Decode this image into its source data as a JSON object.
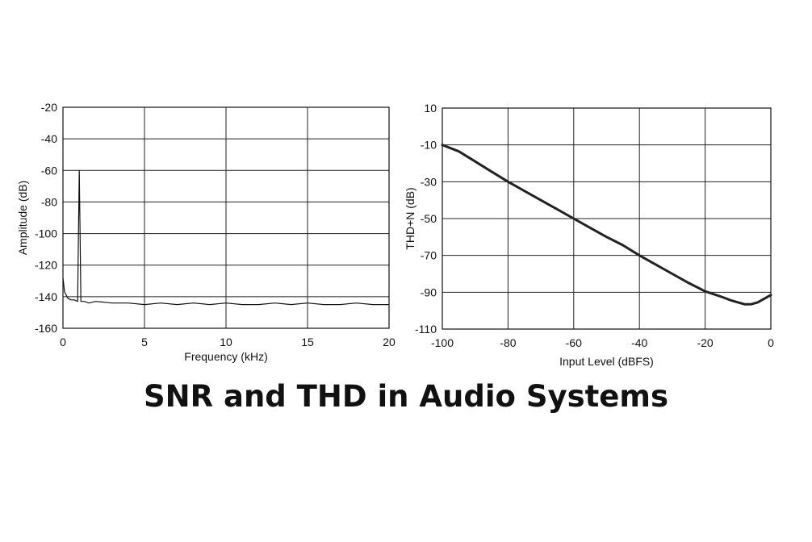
{
  "page": {
    "title": "SNR and THD in Audio Systems"
  },
  "chart_data": [
    {
      "type": "line",
      "xlabel": "Frequency (kHz)",
      "ylabel": "Amplitude (dB)",
      "xlim": [
        0,
        20
      ],
      "ylim": [
        -160,
        -20
      ],
      "x_ticks": [
        0,
        5,
        10,
        15,
        20
      ],
      "y_ticks": [
        -20,
        -40,
        -60,
        -80,
        -100,
        -120,
        -140,
        -160
      ],
      "grid": true,
      "series": [
        {
          "color": "#111111",
          "x": [
            0,
            0.1,
            0.2,
            0.3,
            0.5,
            0.7,
            0.9,
            0.95,
            1.0,
            1.05,
            1.1,
            1.3,
            1.6,
            2,
            3,
            4,
            5,
            6,
            7,
            8,
            9,
            10,
            11,
            12,
            13,
            14,
            15,
            16,
            17,
            18,
            19,
            20
          ],
          "y": [
            -128,
            -137,
            -139,
            -141,
            -142,
            -142,
            -143,
            -100,
            -60,
            -100,
            -143,
            -143,
            -144,
            -143,
            -144,
            -144,
            -145,
            -144,
            -145,
            -144,
            -145,
            -144,
            -145,
            -145,
            -144,
            -145,
            -144,
            -145,
            -145,
            -144,
            -145,
            -145
          ]
        }
      ]
    },
    {
      "type": "line",
      "xlabel": "Input Level (dBFS)",
      "ylabel": "THD+N (dB)",
      "xlim": [
        -100,
        0
      ],
      "ylim": [
        -110,
        10
      ],
      "x_ticks": [
        -100,
        -80,
        -60,
        -40,
        -20,
        0
      ],
      "y_ticks": [
        10,
        -10,
        -30,
        -50,
        -70,
        -90,
        -110
      ],
      "grid": true,
      "series": [
        {
          "color": "#222222",
          "x": [
            -100,
            -95,
            -90,
            -85,
            -80,
            -75,
            -70,
            -65,
            -60,
            -55,
            -50,
            -45,
            -40,
            -35,
            -30,
            -25,
            -20,
            -15,
            -12,
            -10,
            -8,
            -6,
            -4,
            -2,
            0
          ],
          "y": [
            -10,
            -13.5,
            -19,
            -24.5,
            -30,
            -35,
            -40,
            -45,
            -50,
            -55,
            -60,
            -64.5,
            -70,
            -75,
            -80,
            -85,
            -89.5,
            -92.5,
            -94.5,
            -95.5,
            -96.5,
            -96.5,
            -95.5,
            -93.5,
            -91.5
          ]
        }
      ]
    }
  ]
}
